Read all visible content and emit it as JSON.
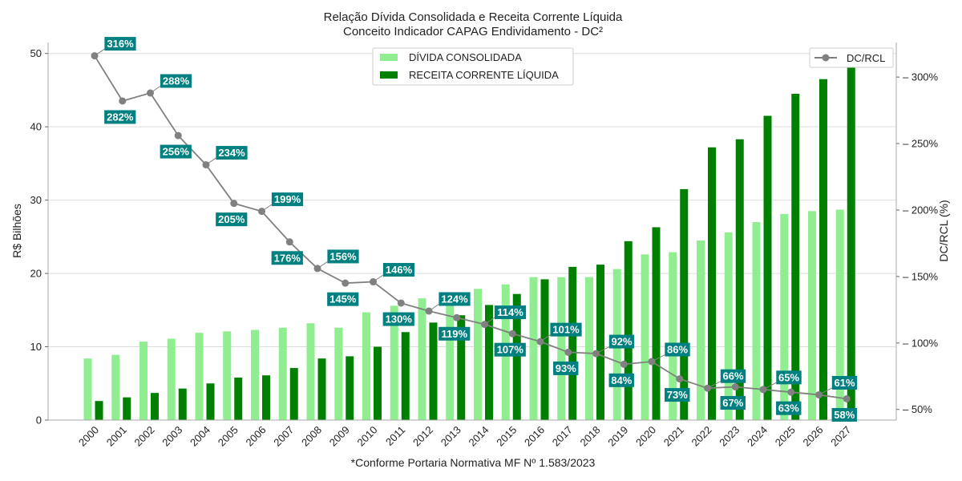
{
  "chart_data": {
    "type": "bar+line",
    "title": "Relação Dívida Consolidada e Receita Corrente Líquida",
    "subtitle": "Conceito Indicador CAPAG Endividamento - DC²",
    "footnote": "*Conforme Portaria Normativa MF Nº 1.583/2023",
    "ylabel_left": "R$ Bilhões",
    "ylabel_right": "DC/RCL (%)",
    "ylim_left": [
      0,
      51.5
    ],
    "yticks_left": [
      "0",
      "10",
      "20",
      "30",
      "40",
      "50"
    ],
    "ylim_right": [
      42,
      326
    ],
    "yticks_right": [
      "50%",
      "100%",
      "150%",
      "200%",
      "250%",
      "300%"
    ],
    "grid": true,
    "categories": [
      "2000",
      "2001",
      "2002",
      "2003",
      "2004",
      "2005",
      "2006",
      "2007",
      "2008",
      "2009",
      "2010",
      "2011",
      "2012",
      "2013",
      "2014",
      "2015",
      "2016",
      "2017",
      "2018",
      "2019",
      "2020",
      "2021",
      "2022",
      "2023",
      "2024",
      "2025",
      "2026",
      "2027"
    ],
    "series": [
      {
        "name": "DÍVIDA CONSOLIDADA",
        "kind": "bar",
        "color": "#90ee90",
        "values": [
          8.4,
          8.9,
          10.7,
          11.1,
          11.9,
          12.1,
          12.3,
          12.6,
          13.2,
          12.6,
          14.7,
          15.6,
          16.6,
          17.1,
          17.9,
          18.5,
          19.5,
          19.5,
          19.5,
          20.6,
          22.6,
          22.9,
          24.5,
          25.6,
          27.0,
          28.1,
          28.5,
          28.7
        ]
      },
      {
        "name": "RECEITA CORRENTE LÍQUIDA",
        "kind": "bar",
        "color": "#008000",
        "values": [
          2.6,
          3.1,
          3.7,
          4.3,
          5.0,
          5.8,
          6.1,
          7.1,
          8.4,
          8.7,
          10.0,
          12.0,
          13.3,
          14.3,
          15.7,
          17.2,
          19.2,
          20.9,
          21.2,
          24.4,
          26.3,
          31.5,
          37.2,
          38.3,
          41.5,
          44.5,
          46.5,
          49.5
        ]
      },
      {
        "name": "DC/RCL",
        "kind": "line",
        "axis": "right",
        "color": "#808080",
        "values": [
          316,
          282,
          288,
          256,
          234,
          205,
          199,
          176,
          156,
          145,
          146,
          130,
          124,
          119,
          114,
          107,
          101,
          93,
          92,
          84,
          86,
          73,
          66,
          67,
          65,
          63,
          61,
          58
        ],
        "labels": [
          "316%",
          "282%",
          "288%",
          "256%",
          "234%",
          "205%",
          "199%",
          "176%",
          "156%",
          "145%",
          "146%",
          "130%",
          "124%",
          "119%",
          "114%",
          "107%",
          "101%",
          "93%",
          "92%",
          "84%",
          "86%",
          "73%",
          "66%",
          "67%",
          "65%",
          "63%",
          "61%",
          "58%"
        ],
        "label_color": "#008080"
      }
    ],
    "legend": {
      "bars_position": "top-center",
      "line_position": "top-right"
    }
  }
}
